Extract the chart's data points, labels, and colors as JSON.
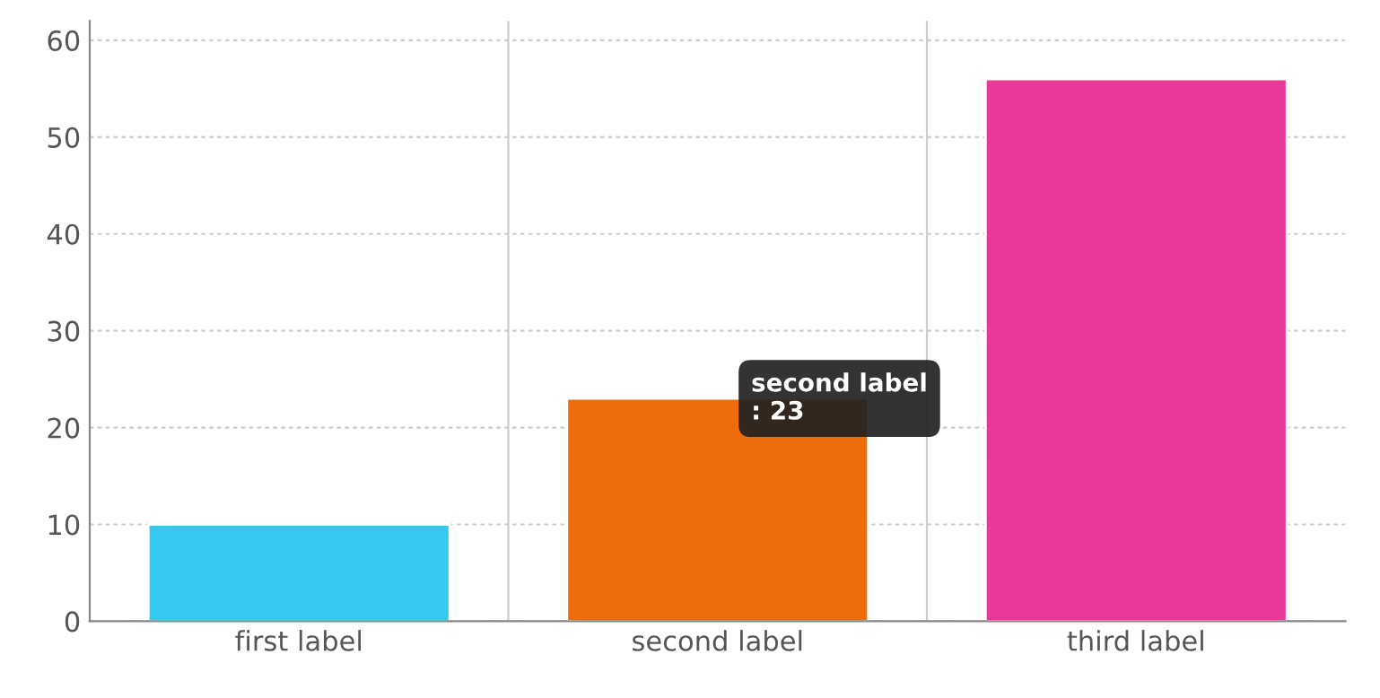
{
  "chart_data": {
    "type": "bar",
    "categories": [
      "first label",
      "second label",
      "third label"
    ],
    "values": [
      10,
      23,
      56
    ],
    "colors": [
      "#36c9f0",
      "#ee6c0a",
      "#e8389a"
    ],
    "ylim": [
      0,
      62
    ],
    "yticks": [
      0,
      10,
      20,
      30,
      40,
      50,
      60
    ],
    "grid": true,
    "annotations": [
      {
        "text": "second label\n: 23",
        "x": "second label",
        "y": 23
      }
    ]
  }
}
